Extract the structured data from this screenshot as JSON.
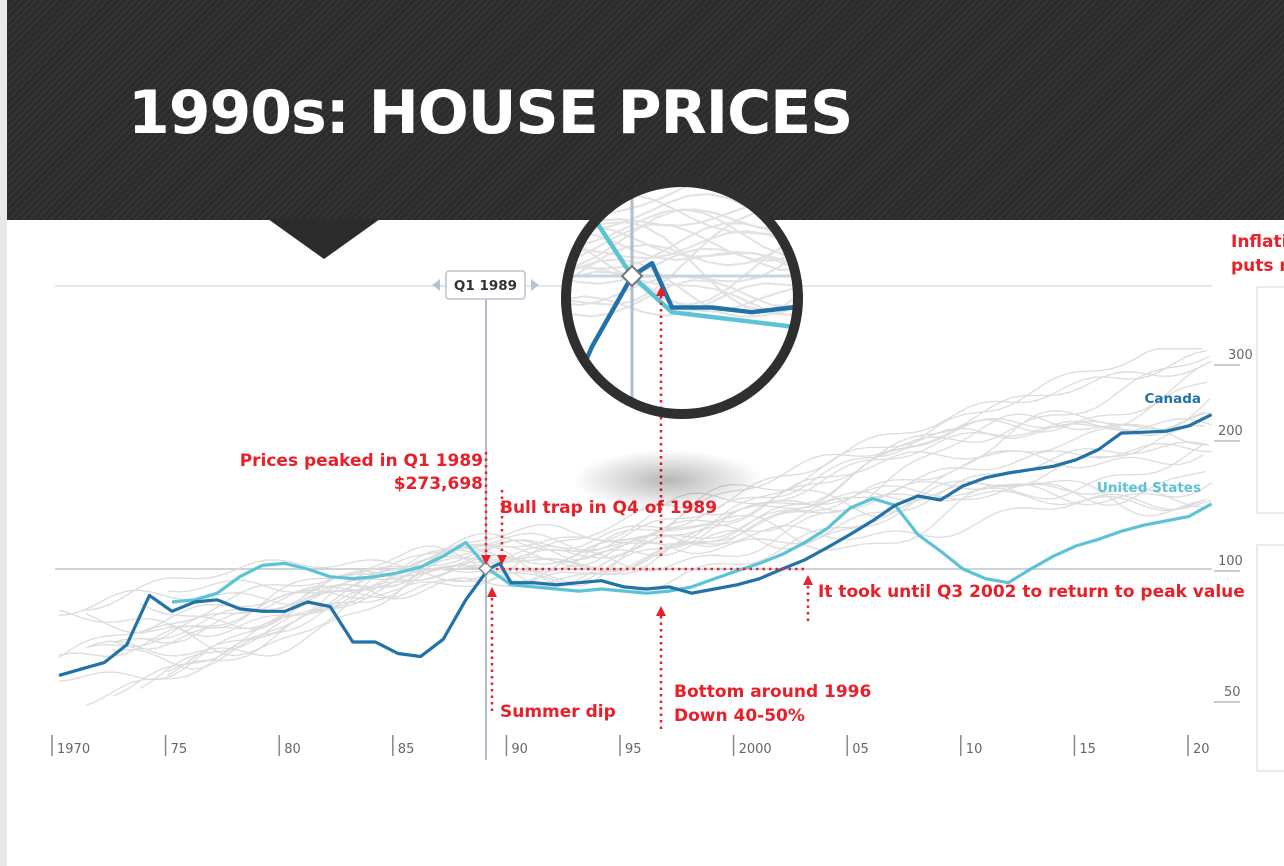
{
  "slide": {
    "title": "1990s: HOUSE PRICES"
  },
  "colors": {
    "canada": "#2272a8",
    "united_states": "#5cc3d6",
    "other": "#dcdcdc",
    "annotation": "#e8202a",
    "header": "#2b2b2b"
  },
  "chart_data": {
    "type": "line",
    "title": "",
    "xlabel": "",
    "ylabel": "",
    "x_ticks": [
      "1970",
      "75",
      "80",
      "85",
      "90",
      "95",
      "2000",
      "05",
      "10",
      "15",
      "20"
    ],
    "y_ticks": [
      "300",
      "200",
      "100",
      "50"
    ],
    "xlim": [
      1970,
      2021
    ],
    "ylim": [
      40,
      330
    ],
    "y_scale": "log",
    "grid": false,
    "focus_label": "Q1 1989",
    "series": [
      {
        "name": "Canada",
        "x": [
          1970,
          1971,
          1972,
          1973,
          1974,
          1975,
          1976,
          1977,
          1978,
          1979,
          1980,
          1981,
          1982,
          1983,
          1984,
          1985,
          1986,
          1987,
          1988,
          1989,
          1989.5,
          1990,
          1991,
          1992,
          1993,
          1994,
          1995,
          1996,
          1997,
          1998,
          1999,
          2000,
          2001,
          2002,
          2003,
          2004,
          2005,
          2006,
          2007,
          2008,
          2009,
          2010,
          2011,
          2012,
          2013,
          2014,
          2015,
          2016,
          2017,
          2018,
          2019,
          2020,
          2021
        ],
        "y": [
          57,
          59,
          61,
          67,
          87,
          80,
          84,
          85,
          81,
          80,
          80,
          84,
          82,
          68,
          68,
          64,
          63,
          69,
          85,
          100,
          103,
          93,
          93,
          92,
          93,
          94,
          91,
          90,
          91,
          88,
          90,
          92,
          95,
          100,
          105,
          112,
          120,
          129,
          140,
          147,
          144,
          155,
          162,
          166,
          169,
          172,
          178,
          188,
          205,
          206,
          207,
          213,
          226
        ]
      },
      {
        "name": "United States",
        "x": [
          1975,
          1976,
          1977,
          1978,
          1979,
          1980,
          1981,
          1982,
          1983,
          1984,
          1985,
          1986,
          1987,
          1988,
          1989,
          1990,
          1991,
          1992,
          1993,
          1994,
          1995,
          1996,
          1997,
          1998,
          1999,
          2000,
          2001,
          2002,
          2003,
          2004,
          2005,
          2006,
          2007,
          2008,
          2009,
          2010,
          2011,
          2012,
          2013,
          2014,
          2015,
          2016,
          2017,
          2018,
          2019,
          2020,
          2021
        ],
        "y": [
          84,
          85,
          88,
          96,
          102,
          103,
          100,
          96,
          95,
          96,
          98,
          101,
          107,
          115,
          100,
          92,
          91,
          90,
          89,
          90,
          89,
          88,
          89,
          91,
          95,
          99,
          103,
          108,
          115,
          124,
          138,
          145,
          140,
          120,
          110,
          100,
          95,
          93,
          100,
          107,
          113,
          117,
          122,
          126,
          129,
          132,
          141
        ]
      }
    ],
    "annotations": [
      {
        "text": "Prices peaked in Q1 1989",
        "x": 1989.0,
        "y": 100
      },
      {
        "text": "$273,698",
        "x": 1989.0,
        "y": 100
      },
      {
        "text": "Bull trap in Q4 of 1989",
        "x": 1989.75,
        "y": 103
      },
      {
        "text": "Summer dip",
        "x": 1989.3,
        "y": 97
      },
      {
        "text": "Bottom around 1996",
        "x": 1996.8,
        "y": 88
      },
      {
        "text": "Down 40-50%",
        "x": 1996.8,
        "y": 88
      },
      {
        "text": "It took until Q3 2002 to return to peak value",
        "x": 2002.75,
        "y": 100
      }
    ],
    "inset": {
      "type": "magnifier",
      "x_range": [
        1987.5,
        1995.5
      ]
    }
  },
  "side_panel": {
    "heading_line1": "Inflati",
    "heading_line2": "puts r"
  }
}
